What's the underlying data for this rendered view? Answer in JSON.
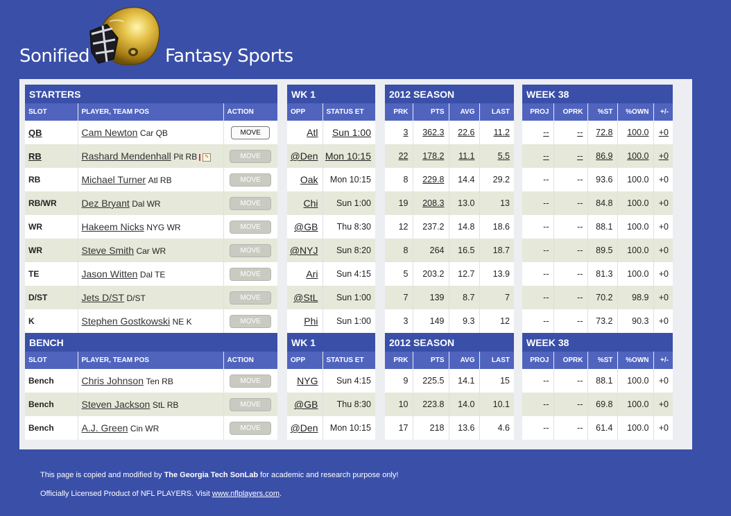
{
  "header": {
    "left_word": "Sonified",
    "right_word": "Fantasy Sports"
  },
  "starters": {
    "groups": {
      "a": "STARTERS",
      "b": "WK 1",
      "c": "2012 SEASON",
      "d": "WEEK 38"
    },
    "columns": {
      "slot": "SLOT",
      "player": "PLAYER, TEAM POS",
      "action": "ACTION",
      "opp": "OPP",
      "status": "STATUS ET",
      "prk": "PRK",
      "pts": "PTS",
      "avg": "AVG",
      "last": "LAST",
      "proj": "PROJ",
      "oprk": "OPRK",
      "pst": "%ST",
      "pown": "%OWN",
      "pm": "+/-"
    },
    "rows": [
      {
        "slot": "QB",
        "player": "Cam Newton",
        "team": "Car QB",
        "action": "MOVE",
        "opp": "Atl",
        "status": "Sun 1:00",
        "prk": "3",
        "pts": "362.3",
        "avg": "22.6",
        "last": "11.2",
        "proj": "--",
        "oprk": "--",
        "pst": "72.8",
        "pown": "100.0",
        "pm": "+0"
      },
      {
        "slot": "RB",
        "player": "Rashard Mendenhall",
        "team": "Pit RB",
        "action": "MOVE",
        "opp": "@Den",
        "status": "Mon 10:15",
        "prk": "22",
        "pts": "178.2",
        "avg": "11.1",
        "last": "5.5",
        "proj": "--",
        "oprk": "--",
        "pst": "86.9",
        "pown": "100.0",
        "pm": "+0"
      },
      {
        "slot": "RB",
        "player": "Michael Turner",
        "team": "Atl RB",
        "action": "MOVE",
        "opp": "Oak",
        "status": "Mon 10:15",
        "prk": "8",
        "pts": "229.8",
        "avg": "14.4",
        "last": "29.2",
        "proj": "--",
        "oprk": "--",
        "pst": "93.6",
        "pown": "100.0",
        "pm": "+0"
      },
      {
        "slot": "RB/WR",
        "player": "Dez Bryant",
        "team": "Dal WR",
        "action": "MOVE",
        "opp": "Chi",
        "status": "Sun 1:00",
        "prk": "19",
        "pts": "208.3",
        "avg": "13.0",
        "last": "13",
        "proj": "--",
        "oprk": "--",
        "pst": "84.8",
        "pown": "100.0",
        "pm": "+0"
      },
      {
        "slot": "WR",
        "player": "Hakeem Nicks",
        "team": "NYG WR",
        "action": "MOVE",
        "opp": "@GB",
        "status": "Thu 8:30",
        "prk": "12",
        "pts": "237.2",
        "avg": "14.8",
        "last": "18.6",
        "proj": "--",
        "oprk": "--",
        "pst": "88.1",
        "pown": "100.0",
        "pm": "+0"
      },
      {
        "slot": "WR",
        "player": "Steve Smith",
        "team": "Car WR",
        "action": "MOVE",
        "opp": "@NYJ",
        "status": "Sun 8:20",
        "prk": "8",
        "pts": "264",
        "avg": "16.5",
        "last": "18.7",
        "proj": "--",
        "oprk": "--",
        "pst": "89.5",
        "pown": "100.0",
        "pm": "+0"
      },
      {
        "slot": "TE",
        "player": "Jason Witten",
        "team": "Dal TE",
        "action": "MOVE",
        "opp": "Ari",
        "status": "Sun 4:15",
        "prk": "5",
        "pts": "203.2",
        "avg": "12.7",
        "last": "13.9",
        "proj": "--",
        "oprk": "--",
        "pst": "81.3",
        "pown": "100.0",
        "pm": "+0"
      },
      {
        "slot": "D/ST",
        "player": "Jets D/ST",
        "team": "D/ST",
        "action": "MOVE",
        "opp": "@StL",
        "status": "Sun 1:00",
        "prk": "7",
        "pts": "139",
        "avg": "8.7",
        "last": "7",
        "proj": "--",
        "oprk": "--",
        "pst": "70.2",
        "pown": "98.9",
        "pm": "+0"
      },
      {
        "slot": "K",
        "player": "Stephen Gostkowski",
        "team": "NE K",
        "action": "MOVE",
        "opp": "Phi",
        "status": "Sun 1:00",
        "prk": "3",
        "pts": "149",
        "avg": "9.3",
        "last": "12",
        "proj": "--",
        "oprk": "--",
        "pst": "73.2",
        "pown": "90.3",
        "pm": "+0"
      }
    ]
  },
  "bench": {
    "groups": {
      "a": "BENCH",
      "b": "WK 1",
      "c": "2012 SEASON",
      "d": "WEEK 38"
    },
    "columns": {
      "slot": "SLOT",
      "player": "PLAYER, TEAM POS",
      "action": "ACTION",
      "opp": "OPP",
      "status": "STATUS ET",
      "prk": "PRK",
      "pts": "PTS",
      "avg": "AVG",
      "last": "LAST",
      "proj": "PROJ",
      "oprk": "OPRK",
      "pst": "%ST",
      "pown": "%OWN",
      "pm": "+/-"
    },
    "rows": [
      {
        "slot": "Bench",
        "player": "Chris Johnson",
        "team": "Ten RB",
        "action": "MOVE",
        "opp": "NYG",
        "status": "Sun 4:15",
        "prk": "9",
        "pts": "225.5",
        "avg": "14.1",
        "last": "15",
        "proj": "--",
        "oprk": "--",
        "pst": "88.1",
        "pown": "100.0",
        "pm": "+0"
      },
      {
        "slot": "Bench",
        "player": "Steven Jackson",
        "team": "StL RB",
        "action": "MOVE",
        "opp": "@GB",
        "status": "Thu 8:30",
        "prk": "10",
        "pts": "223.8",
        "avg": "14.0",
        "last": "10.1",
        "proj": "--",
        "oprk": "--",
        "pst": "69.8",
        "pown": "100.0",
        "pm": "+0"
      },
      {
        "slot": "Bench",
        "player": "A.J. Green",
        "team": "Cin WR",
        "action": "MOVE",
        "opp": "@Den",
        "status": "Mon 10:15",
        "prk": "17",
        "pts": "218",
        "avg": "13.6",
        "last": "4.6",
        "proj": "--",
        "oprk": "--",
        "pst": "61.4",
        "pown": "100.0",
        "pm": "+0"
      }
    ]
  },
  "footer": {
    "line1_prefix": "This page is copied and modified by ",
    "line1_org": "The Georgia Tech SonLab",
    "line1_suffix": " for academic and research purpose only!",
    "line2_prefix": "Officially Licensed Product of NFL PLAYERS. Visit ",
    "line2_link": "www.nflplayers.com",
    "line2_suffix": "."
  },
  "colors": {
    "page_bg": "#3a4fa8",
    "section_header": "#3a4fa8",
    "column_header": "#5064be",
    "row_alt": "#e6e8d9"
  },
  "icons": [
    "football-helmet-icon",
    "injury-flag-icon",
    "player-note-icon"
  ]
}
